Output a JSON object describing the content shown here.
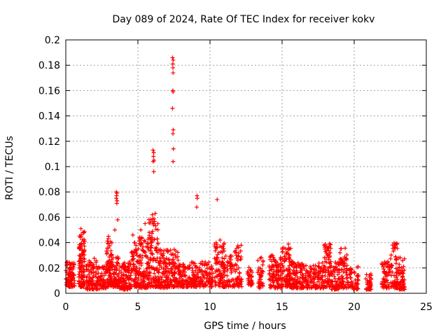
{
  "chart_data": {
    "type": "scatter",
    "title": "Day 089 of 2024, Rate Of TEC Index for receiver kokv",
    "xlabel": "GPS time / hours",
    "ylabel": "ROTI / TECUs",
    "xlim": [
      0,
      25
    ],
    "ylim": [
      0,
      0.2
    ],
    "xticks": [
      0,
      5,
      10,
      15,
      20,
      25
    ],
    "yticks": [
      0,
      0.02,
      0.04,
      0.06,
      0.08,
      0.1,
      0.12,
      0.14,
      0.16,
      0.18,
      0.2
    ],
    "xtick_labels": [
      "0",
      "5",
      "10",
      "15",
      "20",
      "25"
    ],
    "ytick_labels": [
      "0",
      "0.02",
      "0.04",
      "0.06",
      "0.08",
      "0.1",
      "0.12",
      "0.14",
      "0.16",
      "0.18",
      "0.2"
    ],
    "grid": true,
    "marker": "+",
    "marker_color": "#ff0000",
    "series": [
      {
        "name": "ROTI",
        "clusters": [
          {
            "x": [
              0.0,
              0.6
            ],
            "y": [
              0.005,
              0.025
            ],
            "n": 90
          },
          {
            "x": [
              0.9,
              1.3
            ],
            "y": [
              0.005,
              0.05
            ],
            "n": 110
          },
          {
            "x": [
              1.4,
              2.4
            ],
            "y": [
              0.003,
              0.028
            ],
            "n": 110
          },
          {
            "x": [
              2.4,
              2.8
            ],
            "y": [
              0.004,
              0.022
            ],
            "n": 50
          },
          {
            "x": [
              2.8,
              3.2
            ],
            "y": [
              0.005,
              0.045
            ],
            "n": 80
          },
          {
            "x": [
              3.2,
              3.7
            ],
            "y": [
              0.005,
              0.03
            ],
            "n": 70
          },
          {
            "x": [
              3.7,
              4.5
            ],
            "y": [
              0.003,
              0.025
            ],
            "n": 100
          },
          {
            "x": [
              4.5,
              5.0
            ],
            "y": [
              0.005,
              0.04
            ],
            "n": 70
          },
          {
            "x": [
              5.0,
              5.7
            ],
            "y": [
              0.004,
              0.045
            ],
            "n": 110
          },
          {
            "x": [
              5.7,
              6.4
            ],
            "y": [
              0.005,
              0.06
            ],
            "n": 120
          },
          {
            "x": [
              6.4,
              7.2
            ],
            "y": [
              0.004,
              0.035
            ],
            "n": 110
          },
          {
            "x": [
              7.2,
              7.8
            ],
            "y": [
              0.005,
              0.035
            ],
            "n": 80
          },
          {
            "x": [
              7.8,
              9.0
            ],
            "y": [
              0.005,
              0.025
            ],
            "n": 120
          },
          {
            "x": [
              9.0,
              10.2
            ],
            "y": [
              0.005,
              0.025
            ],
            "n": 110
          },
          {
            "x": [
              10.3,
              11.0
            ],
            "y": [
              0.005,
              0.04
            ],
            "n": 90
          },
          {
            "x": [
              11.0,
              11.6
            ],
            "y": [
              0.005,
              0.03
            ],
            "n": 50
          },
          {
            "x": [
              11.6,
              12.2
            ],
            "y": [
              0.005,
              0.038
            ],
            "n": 60
          },
          {
            "x": [
              12.6,
              13.0
            ],
            "y": [
              0.006,
              0.022
            ],
            "n": 30
          },
          {
            "x": [
              13.3,
              13.7
            ],
            "y": [
              0.004,
              0.03
            ],
            "n": 40
          },
          {
            "x": [
              14.1,
              15.0
            ],
            "y": [
              0.004,
              0.03
            ],
            "n": 110
          },
          {
            "x": [
              15.0,
              15.6
            ],
            "y": [
              0.005,
              0.04
            ],
            "n": 90
          },
          {
            "x": [
              15.6,
              16.6
            ],
            "y": [
              0.004,
              0.025
            ],
            "n": 110
          },
          {
            "x": [
              16.6,
              17.3
            ],
            "y": [
              0.004,
              0.022
            ],
            "n": 60
          },
          {
            "x": [
              17.3,
              17.9
            ],
            "y": [
              0.004,
              0.025
            ],
            "n": 60
          },
          {
            "x": [
              17.9,
              18.4
            ],
            "y": [
              0.005,
              0.04
            ],
            "n": 70
          },
          {
            "x": [
              18.4,
              19.0
            ],
            "y": [
              0.003,
              0.025
            ],
            "n": 60
          },
          {
            "x": [
              19.0,
              19.5
            ],
            "y": [
              0.004,
              0.036
            ],
            "n": 60
          },
          {
            "x": [
              19.5,
              20.3
            ],
            "y": [
              0.003,
              0.022
            ],
            "n": 60
          },
          {
            "x": [
              20.8,
              21.2
            ],
            "y": [
              0.003,
              0.016
            ],
            "n": 40
          },
          {
            "x": [
              21.9,
              22.5
            ],
            "y": [
              0.004,
              0.025
            ],
            "n": 60
          },
          {
            "x": [
              22.5,
              23.0
            ],
            "y": [
              0.004,
              0.04
            ],
            "n": 60
          },
          {
            "x": [
              23.0,
              23.5
            ],
            "y": [
              0.003,
              0.03
            ],
            "n": 60
          }
        ],
        "points": [
          [
            7.4,
            0.186
          ],
          [
            7.45,
            0.184
          ],
          [
            7.42,
            0.181
          ],
          [
            7.43,
            0.178
          ],
          [
            7.44,
            0.174
          ],
          [
            7.42,
            0.16
          ],
          [
            7.44,
            0.159
          ],
          [
            7.4,
            0.146
          ],
          [
            7.45,
            0.129
          ],
          [
            7.43,
            0.126
          ],
          [
            7.46,
            0.114
          ],
          [
            7.44,
            0.104
          ],
          [
            6.05,
            0.113
          ],
          [
            6.1,
            0.111
          ],
          [
            6.08,
            0.108
          ],
          [
            6.12,
            0.105
          ],
          [
            6.06,
            0.104
          ],
          [
            6.1,
            0.096
          ],
          [
            3.5,
            0.08
          ],
          [
            3.55,
            0.079
          ],
          [
            3.52,
            0.077
          ],
          [
            3.5,
            0.075
          ],
          [
            3.56,
            0.073
          ],
          [
            3.54,
            0.071
          ],
          [
            3.6,
            0.058
          ],
          [
            9.1,
            0.077
          ],
          [
            9.12,
            0.075
          ],
          [
            9.08,
            0.068
          ],
          [
            10.5,
            0.074
          ],
          [
            6.0,
            0.062
          ],
          [
            6.2,
            0.063
          ],
          [
            5.9,
            0.058
          ],
          [
            6.1,
            0.055
          ],
          [
            5.5,
            0.055
          ],
          [
            5.2,
            0.05
          ],
          [
            1.05,
            0.051
          ],
          [
            3.4,
            0.05
          ],
          [
            4.65,
            0.046
          ],
          [
            10.7,
            0.042
          ]
        ]
      }
    ]
  }
}
